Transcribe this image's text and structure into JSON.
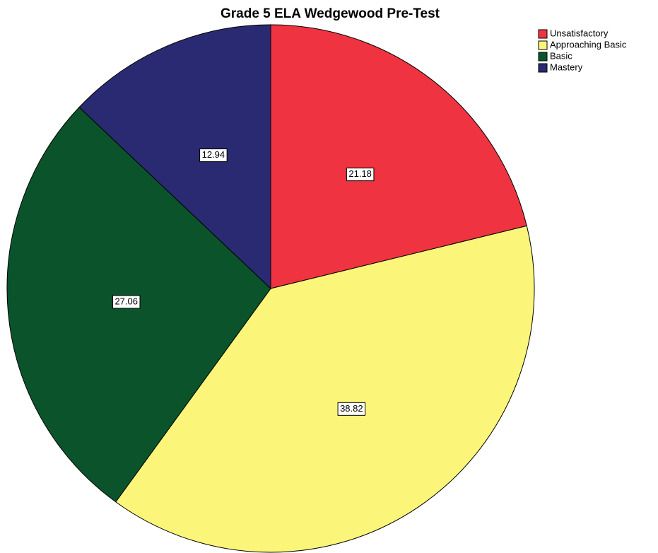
{
  "chart_data": {
    "type": "pie",
    "title": "Grade 5 ELA Wedgewood Pre-Test",
    "categories": [
      "Unsatisfactory",
      "Approaching Basic",
      "Basic",
      "Mastery"
    ],
    "values": [
      21.18,
      38.82,
      27.06,
      12.94
    ],
    "colors": [
      "#ef3340",
      "#fbf67a",
      "#0b542b",
      "#2a2a72"
    ],
    "legend": "top-right"
  }
}
